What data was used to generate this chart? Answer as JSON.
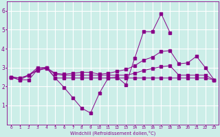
{
  "xlabel": "Windchill (Refroidissement éolien,°C)",
  "background_color": "#cceee8",
  "line_color": "#880088",
  "grid_color": "#ffffff",
  "x": [
    0,
    1,
    2,
    3,
    4,
    5,
    6,
    7,
    8,
    9,
    10,
    11,
    12,
    13,
    14,
    15,
    16,
    17,
    18,
    19,
    20,
    21,
    22,
    23
  ],
  "line1_y": [
    2.5,
    2.35,
    2.35,
    2.9,
    3.0,
    2.45,
    2.45,
    2.45,
    2.45,
    2.45,
    2.45,
    2.45,
    2.45,
    2.45,
    2.45,
    2.45,
    2.45,
    2.45,
    2.45,
    2.45,
    2.45,
    2.45,
    2.45,
    2.35
  ],
  "line2_y": [
    2.5,
    2.35,
    2.6,
    3.0,
    3.0,
    2.45,
    1.95,
    1.4,
    0.85,
    0.6,
    1.65,
    2.45,
    2.5,
    2.1,
    3.5,
    4.9,
    4.9,
    5.85,
    4.85,
    null,
    null,
    null,
    null,
    null
  ],
  "line3_y": [
    2.5,
    2.45,
    2.6,
    2.9,
    3.0,
    2.7,
    2.65,
    2.7,
    2.75,
    2.75,
    2.65,
    2.7,
    2.8,
    2.9,
    3.1,
    3.4,
    3.55,
    3.85,
    3.9,
    3.2,
    3.25,
    3.6,
    3.0,
    2.35
  ],
  "line4_y": [
    2.5,
    2.45,
    2.6,
    2.85,
    2.95,
    2.65,
    2.6,
    2.6,
    2.6,
    2.6,
    2.6,
    2.6,
    2.6,
    2.6,
    2.7,
    2.85,
    2.95,
    3.05,
    3.1,
    2.6,
    2.6,
    2.6,
    2.6,
    2.35
  ],
  "ylim": [
    0,
    6.5
  ],
  "xlim": [
    -0.5,
    23.5
  ],
  "yticks": [
    1,
    2,
    3,
    4,
    5,
    6
  ],
  "xticks": [
    0,
    1,
    2,
    3,
    4,
    5,
    6,
    7,
    8,
    9,
    10,
    11,
    12,
    13,
    14,
    15,
    16,
    17,
    18,
    19,
    20,
    21,
    22,
    23
  ],
  "xlabels": [
    "0",
    "1",
    "2",
    "3",
    "4",
    "5",
    "6",
    "7",
    "8",
    "9",
    "10",
    "11",
    "12",
    "13",
    "14",
    "15",
    "16",
    "17",
    "18",
    "19",
    "20",
    "21",
    "22",
    "23"
  ]
}
